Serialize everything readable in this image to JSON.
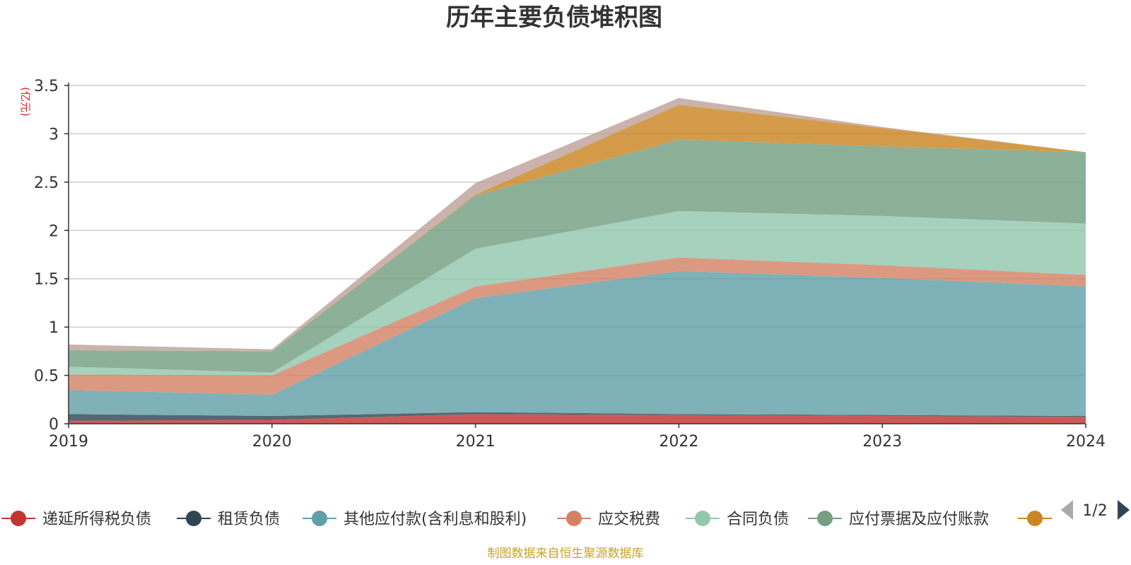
{
  "footer": "制图数据来自恒生聚源数据库",
  "chart_data": {
    "type": "area",
    "stacked": true,
    "title": "历年主要负债堆积图",
    "unit_label": "(亿元)",
    "x": [
      "2019",
      "2020",
      "2021",
      "2022",
      "2023",
      "2024"
    ],
    "ylim": [
      0,
      3.5
    ],
    "yticks": [
      "0",
      "0.5",
      "1",
      "1.5",
      "2",
      "2.5",
      "3",
      "3.5"
    ],
    "grid": true,
    "legend_position": "bottom",
    "legend_page": "1/2",
    "series": [
      {
        "name": "递延所得税负债",
        "color": "#c23531",
        "values": [
          0.03,
          0.04,
          0.1,
          0.09,
          0.08,
          0.07
        ]
      },
      {
        "name": "租赁负债",
        "color": "#2f4554",
        "values": [
          0.07,
          0.04,
          0.02,
          0.01,
          0.01,
          0.01
        ]
      },
      {
        "name": "其他应付款(含利息和股利)",
        "color": "#61a0a8",
        "values": [
          0.25,
          0.22,
          1.18,
          1.48,
          1.42,
          1.34
        ]
      },
      {
        "name": "应交税费",
        "color": "#d48265",
        "values": [
          0.16,
          0.2,
          0.12,
          0.14,
          0.13,
          0.12
        ]
      },
      {
        "name": "合同负债",
        "color": "#91c7ae",
        "values": [
          0.08,
          0.03,
          0.39,
          0.48,
          0.51,
          0.53
        ]
      },
      {
        "name": "应付票据及应付账款",
        "color": "#749f83",
        "values": [
          0.17,
          0.22,
          0.55,
          0.74,
          0.72,
          0.74
        ]
      },
      {
        "name": "",
        "color": "#ca8622",
        "values": [
          0.0,
          0.0,
          0.01,
          0.36,
          0.19,
          0.0
        ]
      },
      {
        "name": "",
        "color": "#bda29a",
        "values": [
          0.06,
          0.02,
          0.12,
          0.07,
          0.01,
          0.0
        ]
      }
    ]
  }
}
